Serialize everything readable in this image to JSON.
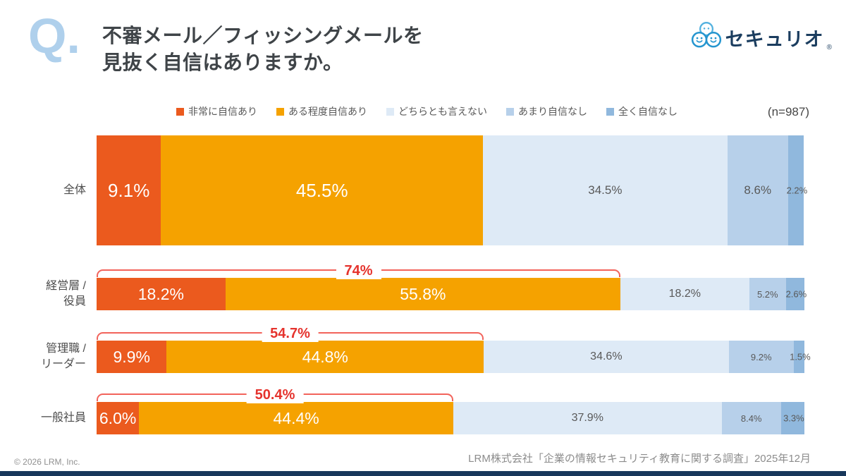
{
  "header": {
    "q_label": "Q.",
    "title_line1": "不審メール／フィッシングメールを",
    "title_line2": "見抜く自信はありますか。",
    "logo_text": "セキュリオ",
    "logo_reg": "®",
    "logo_icon_color": "#2A9AD1",
    "logo_text_color": "#1B3D5F"
  },
  "chart_data": {
    "type": "bar",
    "orientation": "horizontal",
    "stacked": true,
    "xlim": [
      0,
      100
    ],
    "n_label": "(n=987)",
    "categories": [
      "全体",
      "経営層 / 役員",
      "管理職 / リーダー",
      "一般社員"
    ],
    "category_lines": [
      [
        "全体"
      ],
      [
        "経営層 /",
        "役員"
      ],
      [
        "管理職 /",
        "リーダー"
      ],
      [
        "一般社員"
      ]
    ],
    "series": [
      {
        "name": "非常に自信あり",
        "color": "#EB5A1E",
        "values": [
          9.1,
          18.2,
          9.9,
          6.0
        ],
        "labels": [
          "9.1%",
          "18.2%",
          "9.9%",
          "6.0%"
        ]
      },
      {
        "name": "ある程度自信あり",
        "color": "#F5A200",
        "values": [
          45.5,
          55.8,
          44.8,
          44.4
        ],
        "labels": [
          "45.5%",
          "55.8%",
          "44.8%",
          "44.4%"
        ]
      },
      {
        "name": "どちらとも言えない",
        "color": "#DEEAF6",
        "values": [
          34.5,
          18.2,
          34.6,
          37.9
        ],
        "labels": [
          "34.5%",
          "18.2%",
          "34.6%",
          "37.9%"
        ]
      },
      {
        "name": "あまり自信なし",
        "color": "#B7D0EA",
        "values": [
          8.6,
          5.2,
          9.2,
          8.4
        ],
        "labels": [
          "8.6%",
          "5.2%",
          "9.2%",
          "8.4%"
        ]
      },
      {
        "name": "全く自信なし",
        "color": "#90B8DD",
        "values": [
          2.2,
          2.6,
          1.5,
          3.3
        ],
        "labels": [
          "2.2%",
          "2.6%",
          "1.5%",
          "3.3%"
        ]
      }
    ],
    "annotations": {
      "brackets": [
        {
          "row": 1,
          "span_pct": 74.0,
          "label": "74%"
        },
        {
          "row": 2,
          "span_pct": 54.7,
          "label": "54.7%"
        },
        {
          "row": 3,
          "span_pct": 50.4,
          "label": "50.4%"
        }
      ],
      "bracket_line_color": "#F2635B",
      "bracket_text_color": "#E5332D"
    }
  },
  "footer": {
    "source": "LRM株式会社「企業の情報セキュリティ教育に関する調査」2025年12月",
    "copyright": "© 2026 LRM, Inc."
  }
}
